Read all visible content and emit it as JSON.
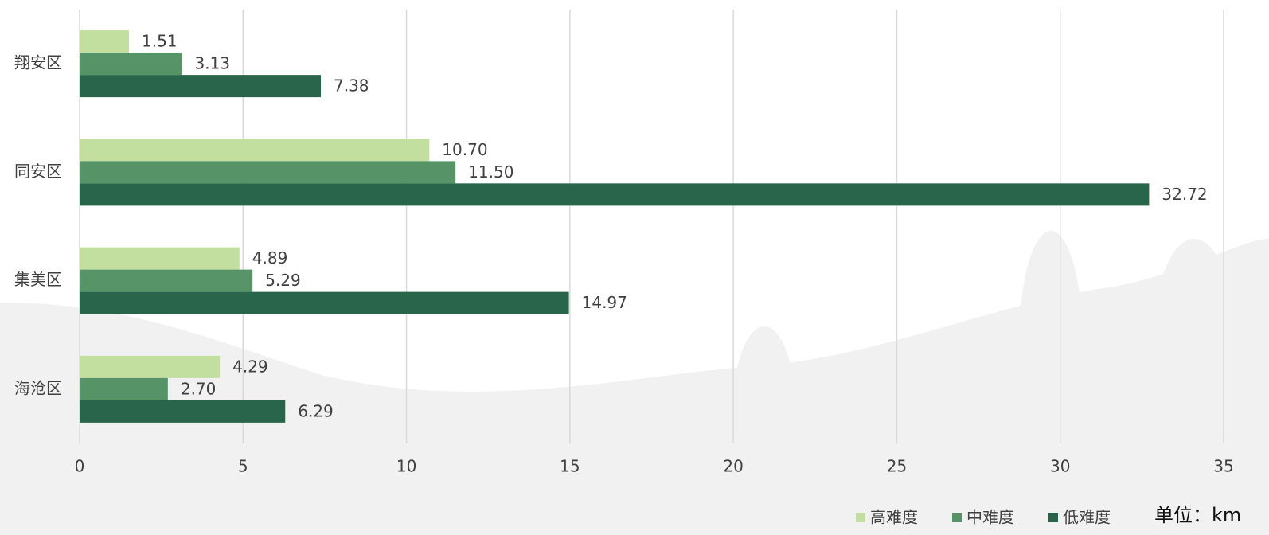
{
  "chart_data": {
    "type": "barh",
    "categories": [
      "翔安区",
      "同安区",
      "集美区",
      "海沧区"
    ],
    "series": [
      {
        "name": "高难度",
        "color": "#c3dfa0",
        "values": [
          1.51,
          10.7,
          4.89,
          4.29
        ],
        "value_labels": [
          "1.51",
          "10.70",
          "4.89",
          "4.29"
        ]
      },
      {
        "name": "中难度",
        "color": "#569468",
        "values": [
          3.13,
          11.5,
          5.29,
          2.7
        ],
        "value_labels": [
          "3.13",
          "11.50",
          "5.29",
          "2.70"
        ]
      },
      {
        "name": "低难度",
        "color": "#29654a",
        "values": [
          7.38,
          32.72,
          14.97,
          6.29
        ],
        "value_labels": [
          "7.38",
          "32.72",
          "14.97",
          "6.29"
        ]
      }
    ],
    "xlim": [
      0,
      35
    ],
    "xticks": [
      0,
      5,
      10,
      15,
      20,
      25,
      30,
      35
    ],
    "grid": true,
    "legend": "bottom-right",
    "unit_label": "单位：km"
  }
}
